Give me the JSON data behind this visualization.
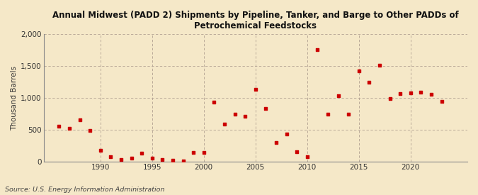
{
  "title": "Annual Midwest (PADD 2) Shipments by Pipeline, Tanker, and Barge to Other PADDs of\nPetrochemical Feedstocks",
  "ylabel": "Thousand Barrels",
  "source": "Source: U.S. Energy Information Administration",
  "background_color": "#f5e8c8",
  "marker_color": "#cc0000",
  "years": [
    1986,
    1987,
    1988,
    1989,
    1990,
    1991,
    1992,
    1993,
    1994,
    1995,
    1996,
    1997,
    1998,
    1999,
    2000,
    2001,
    2002,
    2003,
    2004,
    2005,
    2006,
    2007,
    2008,
    2009,
    2010,
    2011,
    2012,
    2013,
    2014,
    2015,
    2016,
    2017,
    2018,
    2019,
    2020,
    2021,
    2022,
    2023
  ],
  "values": [
    560,
    520,
    660,
    490,
    180,
    75,
    30,
    50,
    130,
    55,
    30,
    20,
    10,
    140,
    145,
    940,
    590,
    750,
    710,
    1140,
    840,
    300,
    430,
    160,
    75,
    1760,
    750,
    1040,
    750,
    1430,
    1250,
    1510,
    990,
    1070,
    1080,
    1090,
    1060,
    950
  ],
  "ylim": [
    0,
    2000
  ],
  "yticks": [
    0,
    500,
    1000,
    1500,
    2000
  ],
  "xlim": [
    1984.5,
    2025.5
  ],
  "xticks": [
    1990,
    1995,
    2000,
    2005,
    2010,
    2015,
    2020
  ]
}
